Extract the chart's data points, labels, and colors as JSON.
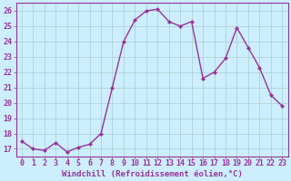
{
  "x": [
    0,
    1,
    2,
    3,
    4,
    5,
    6,
    7,
    8,
    9,
    10,
    11,
    12,
    13,
    14,
    15,
    16,
    17,
    18,
    19,
    20,
    21,
    22,
    23
  ],
  "y": [
    17.5,
    17.0,
    16.9,
    17.4,
    16.8,
    17.1,
    17.3,
    18.0,
    21.0,
    24.0,
    25.4,
    26.0,
    26.1,
    25.3,
    25.0,
    25.3,
    21.6,
    22.0,
    22.9,
    24.9,
    23.6,
    22.3,
    20.5,
    19.8
  ],
  "line_color": "#993399",
  "marker": "D",
  "markersize": 2.0,
  "linewidth": 1.0,
  "bg_color": "#cceeff",
  "grid_color": "#aacccc",
  "xlabel": "Windchill (Refroidissement éolien,°C)",
  "xlabel_fontsize": 6.5,
  "xlabel_color": "#993399",
  "tick_color": "#993399",
  "tick_fontsize": 6.0,
  "ylim": [
    16.5,
    26.5
  ],
  "xlim": [
    -0.5,
    23.5
  ],
  "yticks": [
    17,
    18,
    19,
    20,
    21,
    22,
    23,
    24,
    25,
    26
  ],
  "xticks": [
    0,
    1,
    2,
    3,
    4,
    5,
    6,
    7,
    8,
    9,
    10,
    11,
    12,
    13,
    14,
    15,
    16,
    17,
    18,
    19,
    20,
    21,
    22,
    23
  ],
  "spine_color": "#993399"
}
